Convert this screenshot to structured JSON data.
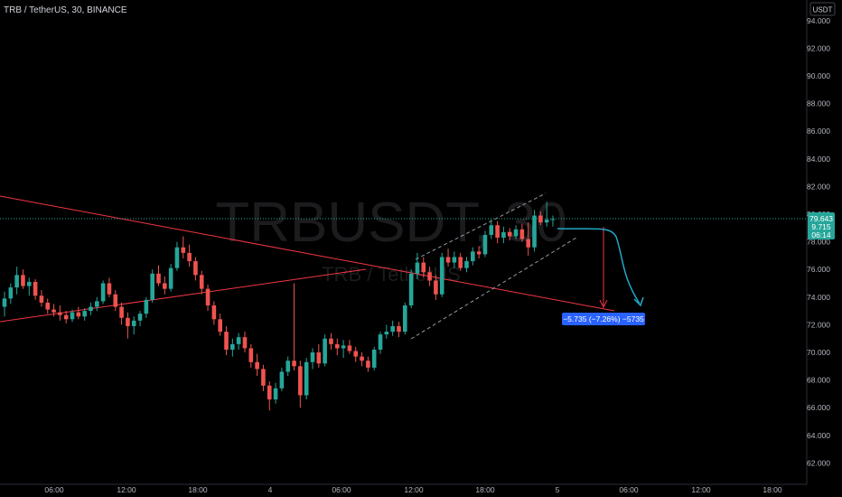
{
  "header": {
    "title": "TRB / TetherUS, 30, BINANCE"
  },
  "watermark": {
    "symbol": "TRBUSDT, 30",
    "name": "TRB / TetherUS"
  },
  "price_axis": {
    "currency": "USDT",
    "ticks": [
      "94.000",
      "92.000",
      "90.000",
      "88.000",
      "86.000",
      "84.000",
      "82.000",
      "80.000",
      "78.000",
      "76.000",
      "74.000",
      "72.000",
      "70.000",
      "68.000",
      "66.000",
      "64.000",
      "62.000"
    ],
    "last_price_badge": {
      "price": "79.643",
      "change": "9.715",
      "countdown": "06:14"
    }
  },
  "time_axis": {
    "ticks": [
      "06:00",
      "12:00",
      "18:00",
      "4",
      "06:00",
      "12:00",
      "18:00",
      "5",
      "06:00",
      "12:00",
      "18:00"
    ]
  },
  "measure_label": "−5.735 (−7.26%) −5735",
  "colors": {
    "up": "#26a69a",
    "down": "#ef5350",
    "trend": "#f23645",
    "measure": "#2962ff",
    "projection": "#22a6c7"
  },
  "chart_data": {
    "type": "candlestick",
    "interval": "30",
    "ylim": [
      61,
      95.5
    ],
    "x_ticks": [
      "06:00",
      "12:00",
      "18:00",
      "4",
      "06:00",
      "12:00",
      "18:00",
      "5",
      "06:00",
      "12:00",
      "18:00"
    ],
    "ohlc": [
      [
        73.3,
        74.4,
        72.6,
        73.9
      ],
      [
        73.9,
        75.0,
        73.5,
        74.7
      ],
      [
        74.7,
        76.2,
        74.2,
        75.6
      ],
      [
        75.6,
        76.0,
        74.6,
        74.8
      ],
      [
        74.8,
        75.4,
        74.1,
        75.1
      ],
      [
        75.1,
        75.3,
        73.8,
        74.1
      ],
      [
        74.1,
        74.5,
        73.3,
        73.6
      ],
      [
        73.6,
        73.9,
        72.8,
        73.1
      ],
      [
        73.1,
        73.5,
        72.6,
        72.9
      ],
      [
        72.9,
        73.4,
        72.3,
        72.7
      ],
      [
        72.7,
        73.0,
        72.1,
        72.4
      ],
      [
        72.4,
        73.1,
        72.2,
        72.9
      ],
      [
        72.9,
        73.3,
        72.4,
        72.6
      ],
      [
        72.6,
        73.2,
        72.3,
        73.0
      ],
      [
        73.0,
        73.6,
        72.7,
        73.3
      ],
      [
        73.3,
        74.0,
        73.0,
        73.7
      ],
      [
        73.7,
        75.2,
        73.5,
        75.0
      ],
      [
        75.0,
        75.4,
        74.0,
        74.2
      ],
      [
        74.2,
        74.5,
        73.0,
        73.3
      ],
      [
        73.3,
        73.6,
        72.0,
        72.5
      ],
      [
        72.5,
        72.9,
        71.0,
        71.9
      ],
      [
        71.9,
        72.6,
        71.3,
        72.3
      ],
      [
        72.3,
        73.0,
        71.9,
        72.8
      ],
      [
        72.8,
        74.0,
        72.5,
        73.8
      ],
      [
        73.8,
        76.0,
        73.6,
        75.7
      ],
      [
        75.7,
        76.3,
        74.8,
        75.0
      ],
      [
        75.0,
        75.5,
        74.2,
        74.6
      ],
      [
        74.6,
        76.4,
        74.4,
        76.1
      ],
      [
        76.1,
        78.0,
        75.9,
        77.6
      ],
      [
        77.6,
        78.4,
        76.8,
        77.2
      ],
      [
        77.2,
        77.8,
        76.2,
        76.6
      ],
      [
        76.6,
        76.9,
        75.2,
        75.6
      ],
      [
        75.6,
        75.9,
        74.2,
        74.6
      ],
      [
        74.6,
        74.9,
        73.0,
        73.4
      ],
      [
        73.4,
        73.7,
        72.0,
        72.4
      ],
      [
        72.4,
        72.8,
        71.2,
        71.5
      ],
      [
        71.5,
        71.9,
        69.8,
        70.2
      ],
      [
        70.2,
        71.0,
        69.7,
        70.6
      ],
      [
        70.6,
        71.4,
        70.2,
        71.1
      ],
      [
        71.1,
        71.5,
        70.0,
        70.3
      ],
      [
        70.3,
        70.6,
        68.9,
        69.3
      ],
      [
        69.3,
        69.9,
        68.3,
        68.8
      ],
      [
        68.8,
        69.1,
        67.2,
        67.6
      ],
      [
        67.6,
        67.9,
        65.8,
        66.6
      ],
      [
        66.6,
        67.8,
        66.3,
        67.4
      ],
      [
        67.4,
        68.9,
        67.2,
        68.6
      ],
      [
        68.6,
        69.7,
        68.3,
        69.4
      ],
      [
        69.4,
        75.0,
        68.7,
        69.0
      ],
      [
        69.0,
        69.4,
        66.0,
        66.9
      ],
      [
        66.9,
        69.6,
        66.6,
        69.3
      ],
      [
        69.3,
        70.3,
        68.8,
        70.0
      ],
      [
        70.0,
        70.6,
        68.9,
        69.2
      ],
      [
        69.2,
        71.3,
        69.0,
        71.0
      ],
      [
        71.0,
        71.4,
        70.2,
        70.6
      ],
      [
        70.6,
        71.0,
        69.8,
        70.3
      ],
      [
        70.3,
        70.9,
        69.6,
        70.5
      ],
      [
        70.5,
        70.9,
        69.9,
        70.1
      ],
      [
        70.1,
        70.4,
        69.3,
        69.7
      ],
      [
        69.7,
        70.0,
        69.0,
        69.4
      ],
      [
        69.4,
        69.7,
        68.6,
        68.9
      ],
      [
        68.9,
        70.4,
        68.7,
        70.2
      ],
      [
        70.2,
        71.5,
        69.9,
        71.3
      ],
      [
        71.3,
        72.0,
        71.0,
        71.5
      ],
      [
        71.5,
        72.3,
        71.2,
        71.9
      ],
      [
        71.9,
        72.2,
        71.1,
        71.5
      ],
      [
        71.5,
        73.6,
        71.3,
        73.4
      ],
      [
        73.4,
        76.0,
        73.2,
        75.7
      ],
      [
        75.7,
        77.2,
        75.3,
        76.5
      ],
      [
        76.5,
        76.9,
        75.4,
        75.8
      ],
      [
        75.8,
        76.2,
        74.8,
        75.2
      ],
      [
        75.2,
        75.6,
        73.8,
        74.2
      ],
      [
        74.2,
        77.2,
        74.0,
        76.9
      ],
      [
        76.9,
        77.5,
        76.2,
        76.5
      ],
      [
        76.5,
        77.3,
        76.1,
        76.9
      ],
      [
        76.9,
        77.2,
        75.9,
        76.1
      ],
      [
        76.1,
        76.9,
        75.8,
        76.6
      ],
      [
        76.6,
        77.6,
        76.3,
        77.3
      ],
      [
        77.3,
        77.7,
        76.8,
        77.1
      ],
      [
        77.1,
        78.8,
        76.9,
        78.5
      ],
      [
        78.5,
        79.6,
        78.2,
        79.2
      ],
      [
        79.2,
        79.5,
        77.9,
        78.3
      ],
      [
        78.3,
        79.1,
        77.9,
        78.7
      ],
      [
        78.7,
        79.0,
        78.1,
        78.4
      ],
      [
        78.4,
        79.2,
        78.2,
        78.9
      ],
      [
        78.9,
        79.3,
        78.0,
        78.2
      ],
      [
        78.2,
        79.4,
        77.0,
        77.6
      ],
      [
        77.6,
        80.3,
        77.3,
        79.9
      ],
      [
        79.9,
        80.2,
        79.2,
        79.4
      ],
      [
        79.4,
        80.9,
        79.1,
        79.6
      ],
      [
        79.6,
        79.9,
        79.1,
        79.64
      ]
    ]
  }
}
